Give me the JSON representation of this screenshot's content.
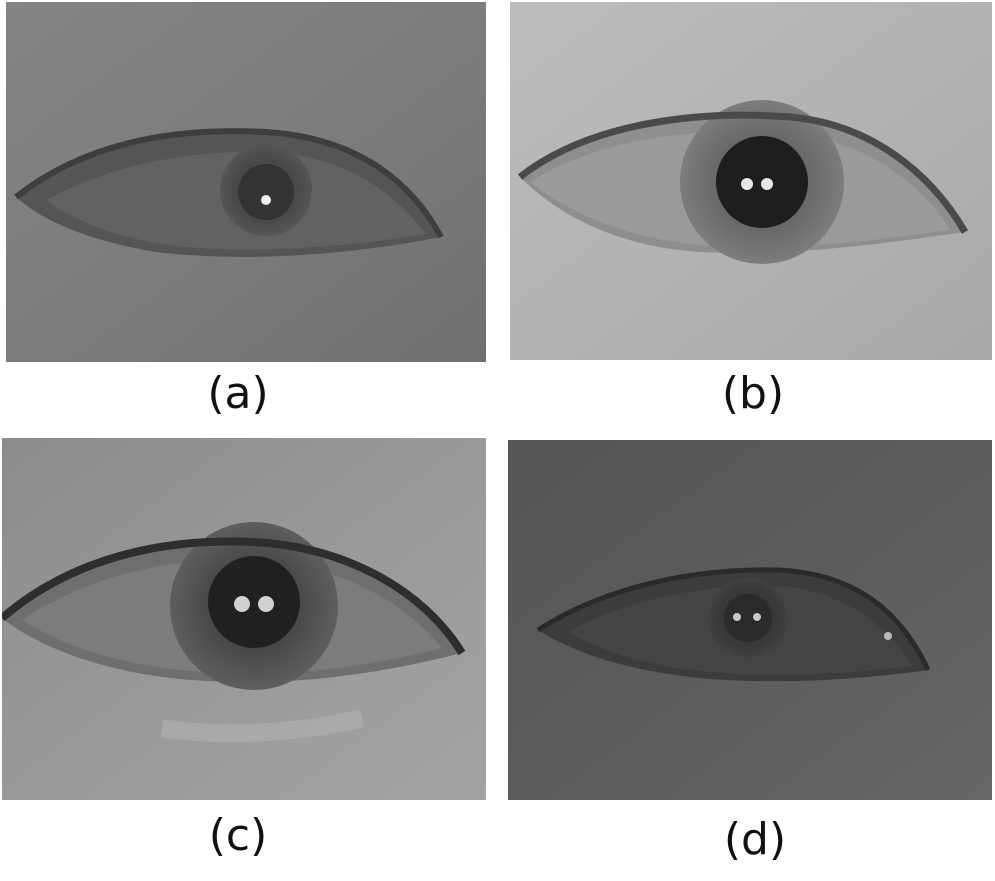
{
  "panels": [
    {
      "id": "a",
      "caption": "(a)",
      "glints": 1
    },
    {
      "id": "b",
      "caption": "(b)",
      "glints": 2
    },
    {
      "id": "c",
      "caption": "(c)",
      "glints": 2
    },
    {
      "id": "d",
      "caption": "(d)",
      "glints": 2
    }
  ]
}
